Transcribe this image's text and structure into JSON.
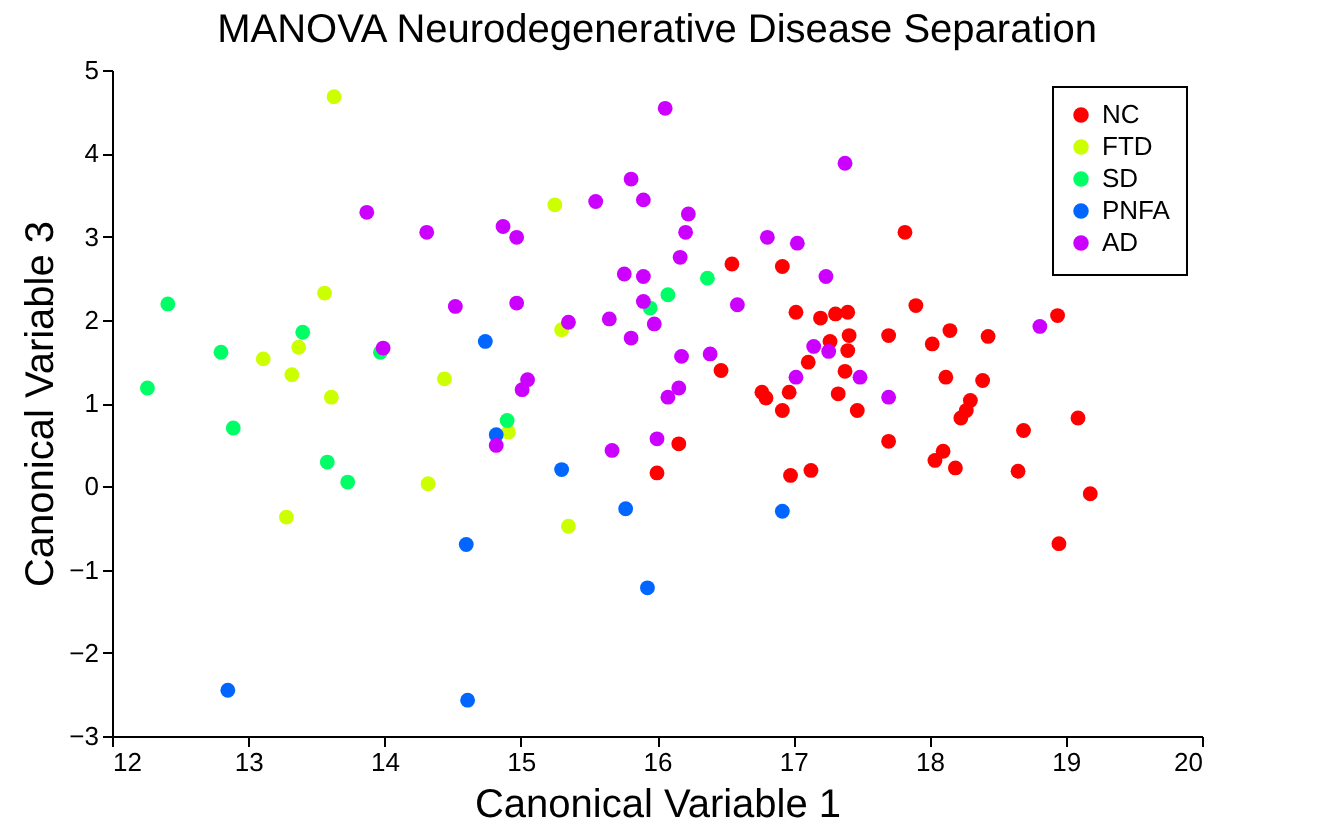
{
  "chart_data": {
    "type": "scatter",
    "title": "MANOVA Neurodegenerative Disease Separation",
    "xlabel": "Canonical Variable 1",
    "ylabel": "Canonical Variable 3",
    "xlim": [
      12,
      20
    ],
    "ylim": [
      -3,
      5
    ],
    "xticks": [
      12,
      13,
      14,
      15,
      16,
      17,
      18,
      19,
      20
    ],
    "yticks": [
      -3,
      -2,
      -1,
      0,
      1,
      2,
      3,
      4,
      5
    ],
    "grid": false,
    "legend": "top right",
    "marker": "circle",
    "series": [
      {
        "name": "NC",
        "color": "#ff0000",
        "x": [
          16.55,
          16.92,
          17.02,
          17.2,
          17.31,
          17.4,
          17.27,
          17.41,
          17.4,
          17.11,
          16.47,
          17.38,
          16.77,
          16.8,
          16.97,
          17.33,
          16.92,
          17.47,
          17.7,
          17.7,
          16.16,
          16.0,
          16.98,
          17.13,
          17.82,
          17.9,
          18.02,
          18.15,
          18.43,
          18.12,
          18.39,
          18.3,
          18.27,
          18.23,
          18.04,
          18.1,
          18.19,
          18.65,
          18.69,
          18.94,
          19.09,
          19.18,
          18.95
        ],
        "values": [
          2.67,
          2.64,
          2.09,
          2.02,
          2.07,
          2.09,
          1.74,
          1.81,
          1.63,
          1.49,
          1.39,
          1.38,
          1.13,
          1.06,
          1.13,
          1.11,
          0.91,
          0.91,
          1.81,
          0.54,
          0.51,
          0.16,
          0.13,
          0.19,
          3.05,
          2.17,
          1.71,
          1.87,
          1.8,
          1.31,
          1.27,
          1.03,
          0.91,
          0.82,
          0.31,
          0.42,
          0.22,
          0.18,
          0.67,
          2.05,
          0.82,
          -0.09,
          -0.69
        ]
      },
      {
        "name": "FTD",
        "color": "#ccff00",
        "x": [
          13.63,
          15.25,
          13.56,
          15.3,
          13.37,
          13.11,
          13.32,
          14.44,
          13.61,
          14.91,
          14.32,
          13.28,
          15.35
        ],
        "values": [
          4.68,
          3.38,
          2.32,
          1.88,
          1.67,
          1.53,
          1.34,
          1.29,
          1.07,
          0.65,
          0.03,
          -0.37,
          -0.48
        ]
      },
      {
        "name": "SD",
        "color": "#00ff66",
        "x": [
          12.41,
          13.4,
          12.8,
          13.97,
          12.26,
          12.89,
          14.9,
          13.58,
          13.73,
          16.08,
          15.95,
          16.37
        ],
        "values": [
          2.19,
          1.85,
          1.61,
          1.61,
          1.18,
          0.7,
          0.79,
          0.29,
          0.05,
          2.3,
          2.14,
          2.5
        ]
      },
      {
        "name": "PNFA",
        "color": "#0066ff",
        "x": [
          14.74,
          14.82,
          15.3,
          15.77,
          14.6,
          15.93,
          12.85,
          14.61,
          16.92
        ],
        "values": [
          1.74,
          0.62,
          0.2,
          -0.27,
          -0.7,
          -1.22,
          -2.45,
          -2.57,
          -0.3
        ]
      },
      {
        "name": "AD",
        "color": "#cc00ff",
        "x": [
          16.06,
          15.81,
          15.55,
          15.9,
          13.87,
          14.31,
          14.87,
          14.97,
          15.76,
          15.9,
          14.52,
          14.97,
          15.9,
          15.35,
          15.65,
          15.98,
          15.81,
          13.99,
          15.05,
          15.01,
          14.82,
          15.67,
          16.0,
          16.23,
          16.21,
          16.17,
          16.18,
          16.39,
          16.59,
          16.16,
          16.08,
          16.81,
          17.03,
          17.24,
          17.38,
          17.15,
          17.26,
          17.02,
          17.49,
          17.7,
          18.81
        ],
        "values": [
          4.54,
          3.69,
          3.42,
          3.44,
          3.29,
          3.05,
          3.12,
          2.99,
          2.55,
          2.52,
          2.16,
          2.2,
          2.22,
          1.97,
          2.01,
          1.95,
          1.78,
          1.66,
          1.28,
          1.16,
          0.49,
          0.43,
          0.57,
          3.27,
          3.05,
          2.75,
          1.56,
          1.59,
          2.18,
          1.18,
          1.07,
          2.99,
          2.92,
          2.52,
          3.88,
          1.68,
          1.62,
          1.31,
          1.31,
          1.07,
          1.92
        ]
      }
    ]
  }
}
